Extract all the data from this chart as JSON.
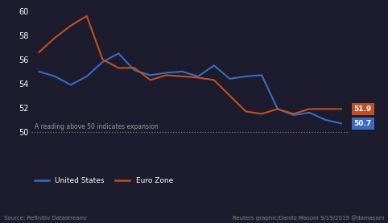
{
  "us_data": [
    55.0,
    54.6,
    53.9,
    54.6,
    55.8,
    56.5,
    55.1,
    54.7,
    54.9,
    55.0,
    54.6,
    55.5,
    54.4,
    54.6,
    54.7,
    51.9,
    51.4,
    51.6,
    51.0,
    50.7
  ],
  "ez_data": [
    56.6,
    57.8,
    58.8,
    59.6,
    56.0,
    55.3,
    55.3,
    54.3,
    54.7,
    54.6,
    54.5,
    54.3,
    53.0,
    51.7,
    51.5,
    51.9,
    51.5,
    51.9,
    51.9,
    51.9
  ],
  "us_color": "#3a6bbf",
  "ez_color": "#c05020",
  "bg_color": "#1c1c2e",
  "us_label": "United States",
  "ez_label": "Euro Zone",
  "us_end_val": "50.7",
  "ez_end_val": "51.9",
  "us_end_bg": "#3a6bbf",
  "ez_end_bg": "#c05020",
  "annotation": "A reading above 50 indicates expansion",
  "annotation_color": "#999999",
  "source_left": "Source: Refinitiv Datastream/",
  "source_right": "Reuters graphic/Danilo Masoni 9/19/2019 @damasoni",
  "ylim_min": 48,
  "ylim_max": 60,
  "yticks": [
    50,
    52,
    54,
    56,
    58,
    60
  ],
  "dashed_line_y": 50,
  "line_width": 1.5
}
